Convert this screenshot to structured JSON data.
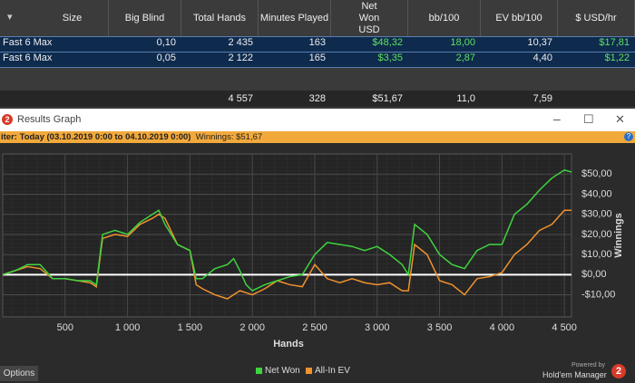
{
  "table": {
    "columns": [
      "Size",
      "Big Blind",
      "Total Hands",
      "Minutes Played",
      "Net Won USD",
      "bb/100",
      "EV bb/100",
      "$ USD/hr"
    ],
    "rows": [
      [
        "Fast  6 Max",
        "0,10",
        "2 435",
        "163",
        "$48,32",
        "18,00",
        "10,37",
        "$17,81"
      ],
      [
        "Fast  6 Max",
        "0,05",
        "2 122",
        "165",
        "$3,35",
        "2,87",
        "4,40",
        "$1,22"
      ]
    ],
    "totals": [
      "4 557",
      "328",
      "$51,67",
      "11,0",
      "7,59"
    ]
  },
  "window": {
    "title": "Results Graph",
    "filter_label": "iter:",
    "filter": "Today (03.10.2019 0:00 to 04.10.2019 0:00)",
    "winnings": "Winnings: $51,67"
  },
  "chart_data": {
    "type": "line",
    "x_label": "Hands",
    "y_label": "Winnings",
    "x": [
      0,
      100,
      200,
      300,
      400,
      500,
      600,
      700,
      750,
      800,
      900,
      1000,
      1100,
      1200,
      1250,
      1300,
      1400,
      1500,
      1550,
      1600,
      1700,
      1800,
      1850,
      1900,
      1950,
      2000,
      2100,
      2200,
      2300,
      2400,
      2500,
      2600,
      2700,
      2800,
      2900,
      3000,
      3100,
      3200,
      3250,
      3300,
      3400,
      3500,
      3600,
      3700,
      3800,
      3900,
      4000,
      4100,
      4200,
      4300,
      4400,
      4500,
      4557
    ],
    "series": [
      {
        "name": "Net Won",
        "color": "#3fd43f",
        "values": [
          0,
          2,
          5,
          5,
          -2,
          -2,
          -3,
          -3,
          -5,
          20,
          22,
          20,
          26,
          30,
          32,
          25,
          15,
          12,
          -2,
          -2,
          3,
          5,
          8,
          2,
          -5,
          -8,
          -5,
          -3,
          -1,
          0,
          10,
          16,
          15,
          14,
          12,
          14,
          10,
          5,
          0,
          25,
          20,
          10,
          5,
          3,
          12,
          15,
          15,
          30,
          35,
          42,
          48,
          52,
          51
        ]
      },
      {
        "name": "All-In EV",
        "color": "#f0922e",
        "values": [
          0,
          2,
          4,
          3,
          -2,
          -2,
          -3,
          -4,
          -6,
          18,
          20,
          19,
          25,
          28,
          30,
          28,
          15,
          12,
          -5,
          -7,
          -10,
          -12,
          -10,
          -8,
          -9,
          -10,
          -7,
          -3,
          -5,
          -6,
          5,
          -2,
          -4,
          -2,
          -4,
          -5,
          -4,
          -8,
          -8,
          15,
          10,
          -3,
          -5,
          -10,
          -2,
          -1,
          1,
          10,
          15,
          22,
          25,
          32,
          32
        ]
      }
    ],
    "xlim": [
      0,
      4557
    ],
    "xticks": [
      500,
      {
        "value": 1000,
        "label": "1 000"
      },
      {
        "value": 1500,
        "label": "1 500"
      },
      {
        "value": 2000,
        "label": "2 000"
      },
      {
        "value": 2500,
        "label": "2 500"
      },
      {
        "value": 3000,
        "label": "3 000"
      },
      {
        "value": 3500,
        "label": "3 500"
      },
      {
        "value": 4000,
        "label": "4 000"
      },
      {
        "value": 4500,
        "label": "4 500"
      }
    ],
    "ylim": [
      -21,
      60
    ],
    "yticks": [
      {
        "value": -10,
        "label": "-$10,00"
      },
      {
        "value": 0,
        "label": "$0,00"
      },
      {
        "value": 10,
        "label": "$10,00"
      },
      {
        "value": 20,
        "label": "$20,00"
      },
      {
        "value": 30,
        "label": "$30,00"
      },
      {
        "value": 40,
        "label": "$40,00"
      },
      {
        "value": 50,
        "label": "$50,00"
      }
    ],
    "grid": true
  },
  "footer": {
    "options": "Options",
    "powered": "Powered by",
    "brand": "Hold'em Manager"
  }
}
